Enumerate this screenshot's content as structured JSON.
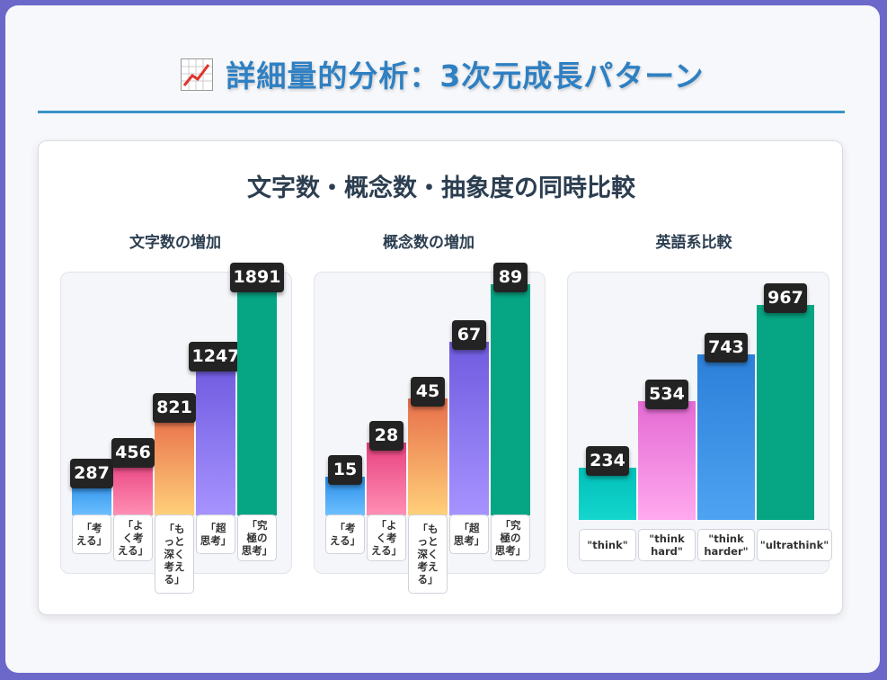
{
  "header": {
    "title": "詳細量的分析：3次元成長パターン",
    "icon": "chart-increasing-icon"
  },
  "card": {
    "title": "文字数・概念数・抽象度の同時比較"
  },
  "colors": {
    "title": "#2f80c2",
    "rule": "#3a93c9",
    "bar_blue": [
      "#2b8ee8",
      "#6cc0ff"
    ],
    "bar_pink": [
      "#e8427f",
      "#ff8fb4"
    ],
    "bar_orange": [
      "#e86f4a",
      "#ffd07a"
    ],
    "bar_purple": [
      "#6f5bdf",
      "#a793ff"
    ],
    "bar_green": [
      "#06a583",
      "#06a583"
    ],
    "bar_cyan": [
      "#00bfb8",
      "#14d6cd"
    ],
    "bar_magenta": [
      "#e46ad3",
      "#ffa9ef"
    ],
    "bar_azure": [
      "#2c7fd8",
      "#4ea3f2"
    ]
  },
  "chart_data": [
    {
      "type": "bar",
      "title": "文字数の増加",
      "categories": [
        "「考える」",
        "「よく考える」",
        "「もっと深く考える」",
        "「超思考」",
        "「究極の思考」"
      ],
      "category_lines": [
        [
          "「考",
          "える」"
        ],
        [
          "「よ",
          "く考",
          "える」"
        ],
        [
          "「も",
          "っと",
          "深く",
          "考え",
          "る」"
        ],
        [
          "「超",
          "思考」"
        ],
        [
          "「究",
          "極の",
          "思考」"
        ]
      ],
      "values": [
        287,
        456,
        821,
        1247,
        1891
      ],
      "value_labels": [
        "287",
        "456",
        "821",
        "1247",
        "1891"
      ]
    },
    {
      "type": "bar",
      "title": "概念数の増加",
      "categories": [
        "「考える」",
        "「よく考える」",
        "「もっと深く考える」",
        "「超思考」",
        "「究極の思考」"
      ],
      "category_lines": [
        [
          "「考",
          "える」"
        ],
        [
          "「よ",
          "く考",
          "える」"
        ],
        [
          "「も",
          "っと",
          "深く",
          "考え",
          "る」"
        ],
        [
          "「超",
          "思考」"
        ],
        [
          "「究",
          "極の",
          "思考」"
        ]
      ],
      "values": [
        15,
        28,
        45,
        67,
        89
      ],
      "value_labels": [
        "15",
        "28",
        "45",
        "67",
        "89"
      ]
    },
    {
      "type": "bar",
      "title": "英語系比較",
      "categories": [
        "\"think\"",
        "\"think hard\"",
        "\"think harder\"",
        "\"ultrathink\""
      ],
      "category_lines": [
        [
          "\"think\""
        ],
        [
          "\"think",
          "hard\""
        ],
        [
          "\"think",
          "harder\""
        ],
        [
          "\"ultrathink\""
        ]
      ],
      "values": [
        234,
        534,
        743,
        967
      ],
      "value_labels": [
        "234",
        "534",
        "743",
        "967"
      ]
    }
  ]
}
